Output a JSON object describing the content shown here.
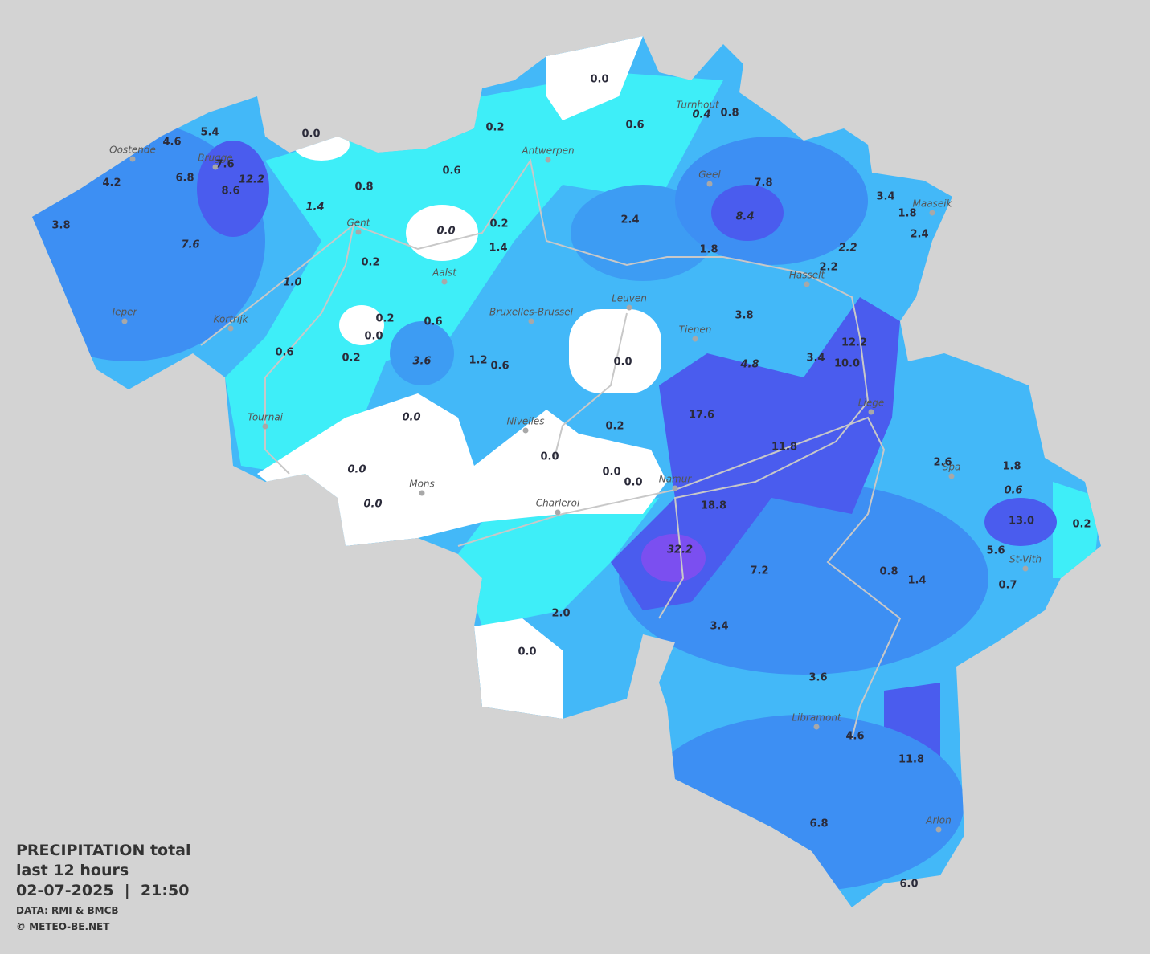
{
  "legend": {
    "title": "PRECIPITATION total",
    "subtitle": "last 12 hours",
    "timestamp": "02-07-2025  |  21:50",
    "source": "DATA: RMI & BMCB",
    "copyright": "© METEO-BE.NET"
  },
  "cities": [
    "Oostende",
    "Brugge",
    "Antwerpen",
    "Turnhout",
    "Geel",
    "Maaseik",
    "Gent",
    "Aalst",
    "Hasselt",
    "Ieper",
    "Kortrijk",
    "Bruxelles-Brussel",
    "Leuven",
    "Tienen",
    "Liege",
    "Tournai",
    "Nivelles",
    "Mons",
    "Namur",
    "Charleroi",
    "Spa",
    "St-Vith",
    "Libramont",
    "Arlon"
  ],
  "values": [
    {
      "text": "0.0",
      "italic": false
    },
    {
      "text": "0.2",
      "italic": false
    },
    {
      "text": "0.6",
      "italic": false
    },
    {
      "text": "0.4",
      "italic": true
    },
    {
      "text": "0.8",
      "italic": false
    },
    {
      "text": "0.0",
      "italic": false
    },
    {
      "text": "5.4",
      "italic": false
    },
    {
      "text": "4.6",
      "italic": false
    },
    {
      "text": "7.6",
      "italic": false
    },
    {
      "text": "12.2",
      "italic": true
    },
    {
      "text": "8.6",
      "italic": false
    },
    {
      "text": "6.8",
      "italic": false
    },
    {
      "text": "4.2",
      "italic": false
    },
    {
      "text": "3.8",
      "italic": false
    },
    {
      "text": "7.6",
      "italic": true
    },
    {
      "text": "1.4",
      "italic": true
    },
    {
      "text": "0.8",
      "italic": false
    },
    {
      "text": "0.6",
      "italic": false
    },
    {
      "text": "0.0",
      "italic": true
    },
    {
      "text": "0.2",
      "italic": false
    },
    {
      "text": "1.4",
      "italic": false
    },
    {
      "text": "2.4",
      "italic": false
    },
    {
      "text": "7.8",
      "italic": false
    },
    {
      "text": "8.4",
      "italic": true
    },
    {
      "text": "3.4",
      "italic": false
    },
    {
      "text": "1.8",
      "italic": false
    },
    {
      "text": "2.4",
      "italic": false
    },
    {
      "text": "2.2",
      "italic": true
    },
    {
      "text": "2.2",
      "italic": false
    },
    {
      "text": "1.8",
      "italic": false
    },
    {
      "text": "0.2",
      "italic": false
    },
    {
      "text": "1.0",
      "italic": true
    },
    {
      "text": "0.2",
      "italic": false
    },
    {
      "text": "0.6",
      "italic": false
    },
    {
      "text": "0.0",
      "italic": false
    },
    {
      "text": "0.6",
      "italic": false
    },
    {
      "text": "0.2",
      "italic": false
    },
    {
      "text": "3.6",
      "italic": true
    },
    {
      "text": "1.2",
      "italic": false
    },
    {
      "text": "0.6",
      "italic": false
    },
    {
      "text": "0.0",
      "italic": false
    },
    {
      "text": "3.8",
      "italic": false
    },
    {
      "text": "4.8",
      "italic": true
    },
    {
      "text": "3.4",
      "italic": false
    },
    {
      "text": "12.2",
      "italic": false
    },
    {
      "text": "10.0",
      "italic": false
    },
    {
      "text": "17.6",
      "italic": false
    },
    {
      "text": "0.0",
      "italic": true
    },
    {
      "text": "0.2",
      "italic": false
    },
    {
      "text": "11.8",
      "italic": false
    },
    {
      "text": "0.0",
      "italic": true
    },
    {
      "text": "0.0",
      "italic": false
    },
    {
      "text": "0.0",
      "italic": false
    },
    {
      "text": "0.0",
      "italic": false
    },
    {
      "text": "0.0",
      "italic": true
    },
    {
      "text": "18.8",
      "italic": false
    },
    {
      "text": "32.2",
      "italic": true
    },
    {
      "text": "7.2",
      "italic": false
    },
    {
      "text": "2.6",
      "italic": false
    },
    {
      "text": "1.8",
      "italic": false
    },
    {
      "text": "0.6",
      "italic": true
    },
    {
      "text": "13.0",
      "italic": false
    },
    {
      "text": "0.2",
      "italic": false
    },
    {
      "text": "5.6",
      "italic": false
    },
    {
      "text": "0.8",
      "italic": false
    },
    {
      "text": "1.4",
      "italic": false
    },
    {
      "text": "0.7",
      "italic": false
    },
    {
      "text": "2.0",
      "italic": false
    },
    {
      "text": "3.4",
      "italic": false
    },
    {
      "text": "0.0",
      "italic": false
    },
    {
      "text": "3.6",
      "italic": false
    },
    {
      "text": "4.6",
      "italic": false
    },
    {
      "text": "11.8",
      "italic": false
    },
    {
      "text": "6.8",
      "italic": false
    },
    {
      "text": "6.0",
      "italic": false
    }
  ]
}
